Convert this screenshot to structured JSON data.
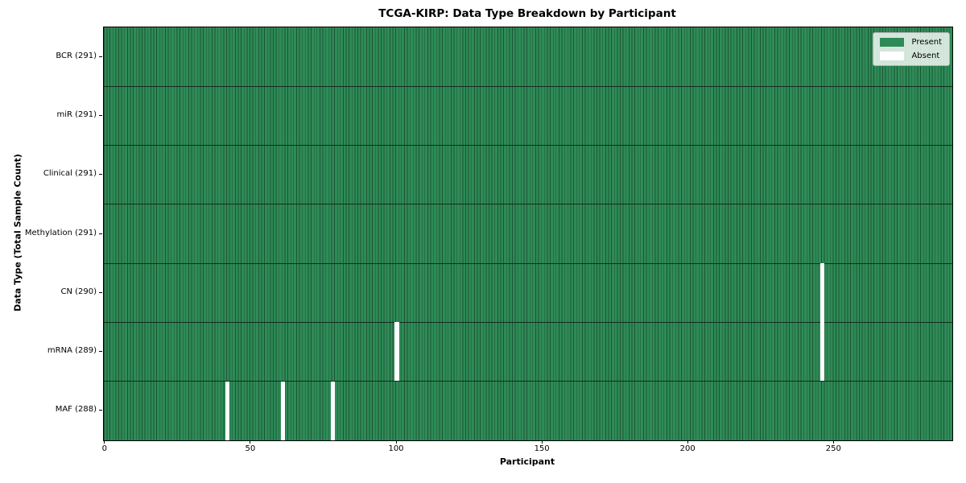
{
  "title": "TCGA-KIRP: Data Type Breakdown by Participant",
  "chart_data": {
    "type": "heatmap",
    "title": "TCGA-KIRP: Data Type Breakdown by Participant",
    "xlabel": "Participant",
    "ylabel": "Data Type (Total Sample Count)",
    "n_participants": 291,
    "xlim": [
      -0.5,
      290.5
    ],
    "x_ticks": [
      0,
      50,
      100,
      150,
      200,
      250
    ],
    "grid": "row-dividers",
    "legend_position": "upper-right",
    "rows": [
      {
        "label": "BCR (291)",
        "data_type": "BCR",
        "present_count": 291,
        "absent_participants": []
      },
      {
        "label": "miR (291)",
        "data_type": "miR",
        "present_count": 291,
        "absent_participants": []
      },
      {
        "label": "Clinical (291)",
        "data_type": "Clinical",
        "present_count": 291,
        "absent_participants": []
      },
      {
        "label": "Methylation (291)",
        "data_type": "Methylation",
        "present_count": 291,
        "absent_participants": []
      },
      {
        "label": "CN (290)",
        "data_type": "CN",
        "present_count": 290,
        "absent_participants": [
          246
        ]
      },
      {
        "label": "mRNA (289)",
        "data_type": "mRNA",
        "present_count": 289,
        "absent_participants": [
          100,
          246
        ]
      },
      {
        "label": "MAF (288)",
        "data_type": "MAF",
        "present_count": 288,
        "absent_participants": [
          42,
          61,
          78
        ]
      }
    ],
    "legend": [
      {
        "label": "Present",
        "color": "#2e8b57"
      },
      {
        "label": "Absent",
        "color": "#ffffff"
      }
    ],
    "colors": {
      "present": "#2e8b57",
      "bar_edge": "#1d5434",
      "absent": "#ffffff",
      "row_divider": "#122e1e",
      "plot_border": "#000000",
      "legend_border": "#b0b0b0"
    }
  }
}
